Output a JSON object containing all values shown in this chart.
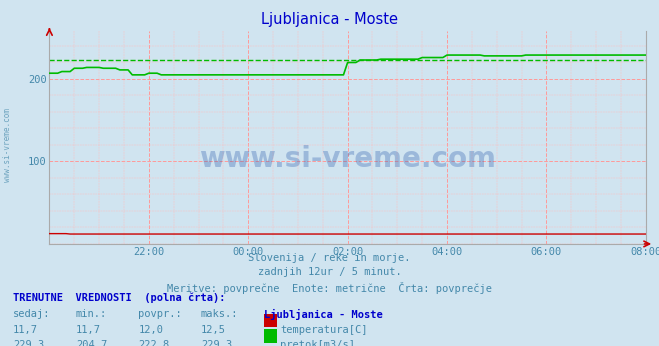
{
  "title": "Ljubljanica - Moste",
  "bg_color": "#d0e4f0",
  "plot_bg_color": "#d0e4f0",
  "title_color": "#0000cc",
  "axis_label_color": "#4488aa",
  "grid_color_major": "#ff9999",
  "temp_color": "#cc0000",
  "flow_color": "#00bb00",
  "avg_line_color": "#00bb00",
  "watermark_text": "www.si-vreme.com",
  "watermark_color": "#2255aa",
  "watermark_alpha": 0.3,
  "sub_text1": "Slovenija / reke in morje.",
  "sub_text2": "zadnjih 12ur / 5 minut.",
  "sub_text3": "Meritve: povprečne  Enote: metrične  Črta: povprečje",
  "legend_header": "TRENUTNE  VREDNOSTI  (polna črta):",
  "col_headers": [
    "sedaj:",
    "min.:",
    "povpr.:",
    "maks.:",
    "Ljubljanica - Moste"
  ],
  "temp_row": [
    "11,7",
    "11,7",
    "12,0",
    "12,5"
  ],
  "temp_label": "temperatura[C]",
  "flow_row": [
    "229,3",
    "204,7",
    "222,8",
    "229,3"
  ],
  "flow_label": "pretok[m3/s]",
  "avg_flow": 222.8,
  "avg_temp": 12.0,
  "ylim": [
    0,
    258
  ],
  "xlim_min": 0,
  "xlim_max": 144,
  "x_ticks_pos": [
    24,
    48,
    72,
    96,
    120,
    144
  ],
  "x_ticks_labels": [
    "22:00",
    "00:00",
    "02:00",
    "04:00",
    "06:00",
    "08:00"
  ],
  "y_ticks": [
    100,
    200
  ],
  "n_points": 145
}
